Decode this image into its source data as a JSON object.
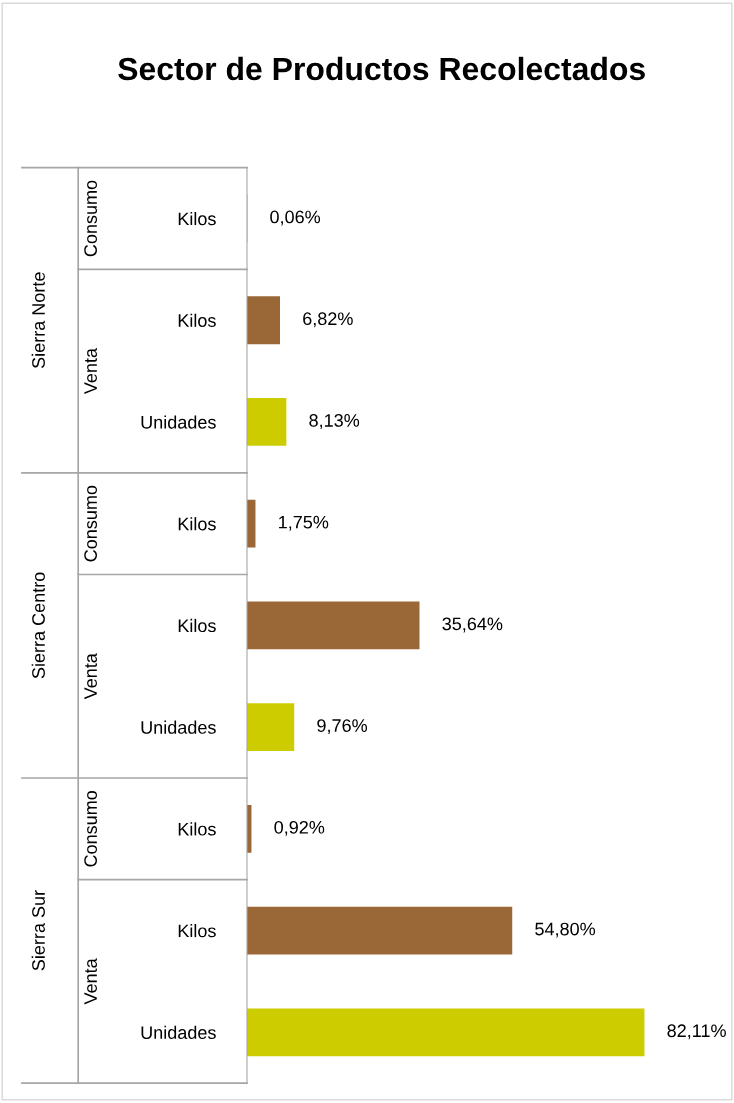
{
  "chart_data": {
    "type": "bar",
    "orientation": "horizontal",
    "title": "Sector de Productos Recolectados",
    "categories": [
      "Kilos",
      "Kilos",
      "Unidades",
      "Kilos",
      "Kilos",
      "Unidades",
      "Kilos",
      "Kilos",
      "Unidades"
    ],
    "values": [
      0.06,
      6.82,
      8.13,
      1.75,
      35.64,
      9.76,
      0.92,
      54.8,
      82.11
    ],
    "colors": [
      "#9a6736",
      "#9a6736",
      "#cccc00",
      "#9a6736",
      "#9a6736",
      "#cccc00",
      "#9a6736",
      "#9a6736",
      "#cccc00"
    ],
    "value_labels": [
      "0,06%",
      "6,82%",
      "8,13%",
      "1,75%",
      "35,64%",
      "9,76%",
      "0,92%",
      "54,80%",
      "82,11%"
    ],
    "annotations": [
      "Sierra Norte",
      "Consumo",
      "Venta",
      "Sierra Centro",
      "Consumo",
      "Venta",
      "Sierra Sur",
      "Consumo",
      "Venta"
    ],
    "grid": false,
    "legend": false
  }
}
